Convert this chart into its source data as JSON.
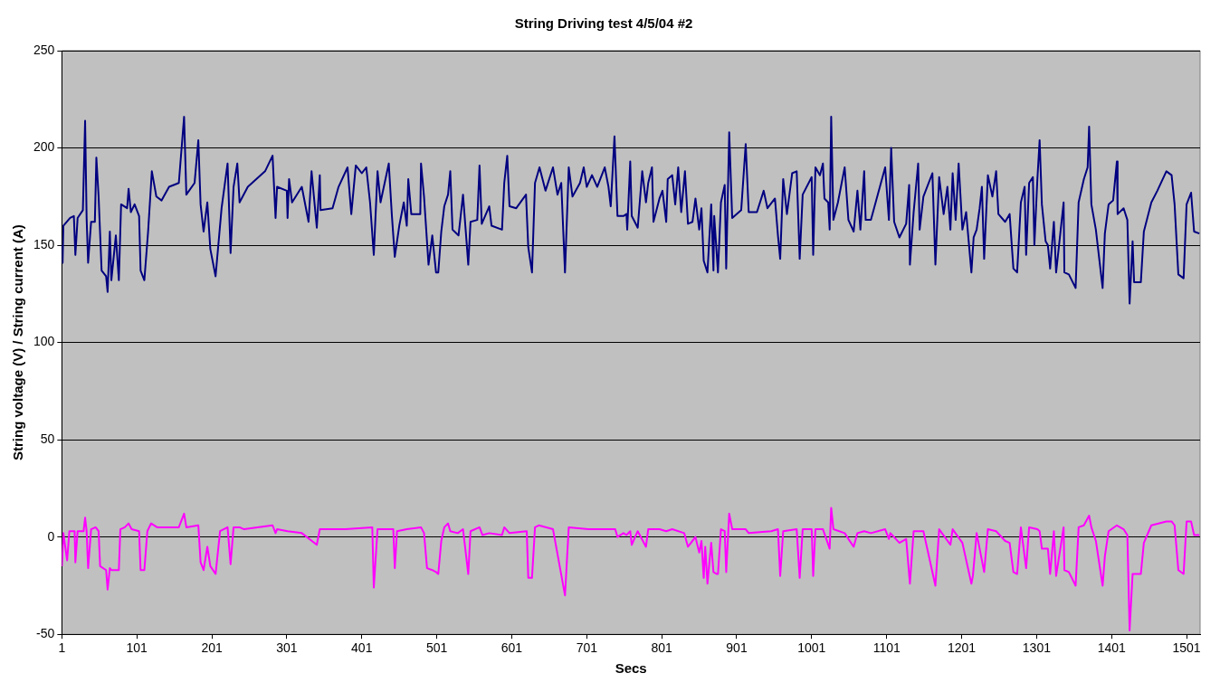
{
  "chart_data": {
    "type": "line",
    "title": "String Driving test 4/5/04 #2",
    "xlabel": "Secs",
    "ylabel": "String voltage (V) / String current (A)",
    "xlim": [
      1,
      1519
    ],
    "xticks": [
      1,
      101,
      201,
      301,
      401,
      501,
      601,
      701,
      801,
      901,
      1001,
      1101,
      1201,
      1301,
      1401,
      1501
    ],
    "ylim": [
      -50,
      250
    ],
    "yticks": [
      -50,
      0,
      50,
      100,
      150,
      200,
      250
    ],
    "grid": "y",
    "legend": false,
    "marker": "none",
    "line_style": "solid",
    "series": [
      {
        "color": "#000080",
        "x": [
          1,
          2,
          3,
          12,
          17,
          19,
          22,
          29,
          32,
          34,
          36,
          40,
          45,
          47,
          50,
          54,
          60,
          62,
          65,
          67,
          73,
          77,
          80,
          88,
          90,
          93,
          98,
          104,
          106,
          111,
          116,
          121,
          127,
          134,
          144,
          157,
          164,
          167,
          178,
          183,
          186,
          190,
          195,
          199,
          206,
          214,
          222,
          226,
          230,
          235,
          238,
          249,
          272,
          282,
          286,
          288,
          301,
          302,
          304,
          308,
          321,
          330,
          334,
          341,
          345,
          346,
          362,
          370,
          382,
          387,
          393,
          401,
          407,
          412,
          417,
          422,
          426,
          437,
          441,
          445,
          451,
          457,
          461,
          463,
          467,
          479,
          480,
          484,
          490,
          495,
          500,
          503,
          507,
          511,
          516,
          519,
          522,
          530,
          536,
          543,
          546,
          555,
          558,
          561,
          571,
          574,
          588,
          591,
          595,
          598,
          607,
          620,
          623,
          628,
          632,
          638,
          646,
          656,
          662,
          667,
          672,
          677,
          682,
          692,
          697,
          701,
          708,
          715,
          725,
          730,
          733,
          738,
          742,
          750,
          754,
          755,
          759,
          761,
          769,
          775,
          780,
          783,
          788,
          790,
          798,
          802,
          807,
          809,
          815,
          819,
          823,
          827,
          832,
          836,
          842,
          846,
          851,
          854,
          857,
          862,
          867,
          870,
          871,
          876,
          880,
          885,
          887,
          891,
          895,
          907,
          913,
          917,
          928,
          937,
          942,
          952,
          956,
          959,
          963,
          968,
          975,
          981,
          985,
          989,
          1001,
          1003,
          1006,
          1012,
          1016,
          1018,
          1023,
          1025,
          1027,
          1030,
          1036,
          1045,
          1050,
          1057,
          1062,
          1066,
          1071,
          1073,
          1080,
          1099,
          1104,
          1107,
          1111,
          1118,
          1127,
          1131,
          1132,
          1137,
          1143,
          1145,
          1150,
          1162,
          1166,
          1171,
          1177,
          1182,
          1186,
          1189,
          1193,
          1197,
          1202,
          1207,
          1214,
          1217,
          1221,
          1225,
          1228,
          1231,
          1236,
          1242,
          1247,
          1250,
          1259,
          1265,
          1270,
          1275,
          1280,
          1285,
          1287,
          1291,
          1296,
          1298,
          1302,
          1305,
          1308,
          1313,
          1316,
          1319,
          1324,
          1327,
          1337,
          1338,
          1344,
          1353,
          1357,
          1364,
          1369,
          1371,
          1374,
          1380,
          1389,
          1392,
          1397,
          1403,
          1408,
          1409,
          1417,
          1422,
          1425,
          1429,
          1431,
          1440,
          1444,
          1454,
          1462,
          1474,
          1481,
          1485,
          1490,
          1497,
          1501,
          1507,
          1511,
          1518
        ],
        "values": [
          150,
          141,
          160,
          164,
          165,
          145,
          164,
          168,
          214,
          164,
          141,
          162,
          162,
          195,
          175,
          137,
          134,
          126,
          157,
          132,
          155,
          132,
          171,
          169,
          179,
          167,
          171,
          165,
          137,
          132,
          157,
          188,
          175,
          173,
          180,
          182,
          216,
          176,
          182,
          204,
          171,
          157,
          172,
          148,
          134,
          169,
          192,
          146,
          180,
          192,
          172,
          180,
          188,
          196,
          164,
          180,
          178,
          164,
          184,
          172,
          180,
          162,
          188,
          159,
          186,
          168,
          169,
          180,
          190,
          166,
          191,
          187,
          190,
          172,
          145,
          188,
          172,
          192,
          166,
          144,
          160,
          172,
          160,
          184,
          166,
          166,
          192,
          175,
          140,
          155,
          136,
          136,
          157,
          170,
          176,
          188,
          158,
          155,
          176,
          140,
          162,
          163,
          191,
          161,
          170,
          160,
          158,
          182,
          196,
          170,
          169,
          176,
          149,
          136,
          182,
          190,
          178,
          190,
          176,
          182,
          136,
          190,
          175,
          182,
          190,
          180,
          186,
          180,
          190,
          180,
          170,
          206,
          165,
          165,
          166,
          158,
          193,
          165,
          159,
          188,
          172,
          182,
          190,
          162,
          174,
          178,
          162,
          184,
          186,
          171,
          190,
          167,
          188,
          161,
          162,
          174,
          158,
          169,
          142,
          136,
          171,
          137,
          165,
          136,
          172,
          181,
          138,
          208,
          164,
          168,
          202,
          167,
          167,
          178,
          169,
          174,
          155,
          143,
          184,
          166,
          187,
          188,
          143,
          176,
          185,
          145,
          190,
          186,
          192,
          174,
          172,
          158,
          216,
          163,
          172,
          190,
          163,
          157,
          178,
          158,
          188,
          163,
          163,
          190,
          163,
          200,
          162,
          154,
          161,
          181,
          140,
          167,
          192,
          158,
          175,
          187,
          140,
          185,
          166,
          180,
          158,
          187,
          163,
          192,
          158,
          167,
          136,
          154,
          158,
          169,
          180,
          143,
          186,
          175,
          188,
          166,
          162,
          166,
          138,
          136,
          172,
          180,
          145,
          182,
          185,
          150,
          184,
          204,
          171,
          152,
          150,
          138,
          162,
          136,
          172,
          136,
          135,
          128,
          172,
          184,
          190,
          211,
          171,
          158,
          128,
          156,
          171,
          173,
          193,
          166,
          169,
          163,
          120,
          152,
          131,
          131,
          157,
          172,
          178,
          188,
          186,
          171,
          135,
          133,
          171,
          177,
          157,
          156
        ]
      },
      {
        "color": "#ff00ff",
        "x": [
          1,
          3,
          8,
          11,
          18,
          19,
          22,
          30,
          32,
          34,
          36,
          40,
          46,
          50,
          52,
          60,
          62,
          65,
          67,
          73,
          77,
          79,
          85,
          90,
          94,
          104,
          106,
          111,
          115,
          120,
          128,
          140,
          157,
          164,
          167,
          183,
          186,
          190,
          195,
          199,
          206,
          212,
          222,
          226,
          230,
          238,
          244,
          282,
          286,
          288,
          302,
          321,
          341,
          345,
          379,
          415,
          417,
          422,
          443,
          445,
          448,
          461,
          480,
          484,
          488,
          495,
          500,
          503,
          507,
          511,
          516,
          519,
          529,
          536,
          543,
          546,
          558,
          562,
          571,
          588,
          591,
          598,
          621,
          623,
          628,
          632,
          637,
          656,
          672,
          677,
          703,
          739,
          742,
          750,
          754,
          759,
          761,
          769,
          780,
          783,
          798,
          807,
          815,
          831,
          836,
          846,
          851,
          854,
          857,
          859,
          862,
          867,
          870,
          874,
          876,
          880,
          885,
          887,
          891,
          895,
          913,
          917,
          947,
          956,
          959,
          963,
          981,
          985,
          989,
          1001,
          1003,
          1006,
          1016,
          1025,
          1027,
          1030,
          1045,
          1050,
          1057,
          1062,
          1071,
          1080,
          1099,
          1104,
          1106,
          1118,
          1127,
          1132,
          1137,
          1150,
          1166,
          1171,
          1186,
          1189,
          1202,
          1214,
          1216,
          1221,
          1231,
          1236,
          1247,
          1259,
          1265,
          1270,
          1275,
          1280,
          1287,
          1291,
          1302,
          1305,
          1308,
          1316,
          1319,
          1324,
          1327,
          1337,
          1338,
          1344,
          1353,
          1357,
          1364,
          1371,
          1374,
          1380,
          1389,
          1392,
          1397,
          1408,
          1417,
          1422,
          1425,
          1429,
          1440,
          1444,
          1454,
          1474,
          1481,
          1485,
          1490,
          1497,
          1501,
          1507,
          1511,
          1518
        ],
        "values": [
          -15,
          2,
          -12,
          3,
          3,
          -13,
          3,
          3,
          10,
          3,
          -16,
          4,
          5,
          3,
          -15,
          -17,
          -27,
          -16,
          -17,
          -17,
          -17,
          4,
          5,
          7,
          4,
          3,
          -17,
          -17,
          3,
          7,
          5,
          5,
          5,
          12,
          5,
          6,
          -13,
          -17,
          -5,
          -15,
          -19,
          3,
          5,
          -14,
          5,
          5,
          4,
          6,
          2,
          4,
          3,
          2,
          -4,
          4,
          4,
          5,
          -26,
          4,
          4,
          -16,
          3,
          4,
          5,
          2,
          -16,
          -17,
          -18,
          -19,
          -2,
          5,
          7,
          3,
          2,
          4,
          -19,
          3,
          5,
          1,
          2,
          1,
          5,
          2,
          3,
          -21,
          -21,
          5,
          6,
          4,
          -30,
          5,
          4,
          4,
          0,
          2,
          1,
          3,
          -4,
          3,
          -5,
          4,
          4,
          3,
          4,
          2,
          -5,
          0,
          -8,
          -2,
          -21,
          -5,
          -24,
          -3,
          -18,
          -19,
          -19,
          4,
          3,
          -18,
          12,
          4,
          4,
          2,
          3,
          4,
          -20,
          3,
          4,
          -21,
          4,
          4,
          -20,
          4,
          4,
          -6,
          15,
          4,
          2,
          -1,
          -5,
          2,
          3,
          2,
          4,
          -1,
          2,
          -3,
          -1,
          -24,
          3,
          3,
          -25,
          4,
          -4,
          4,
          -3,
          -24,
          -20,
          2,
          -18,
          4,
          3,
          -2,
          -3,
          -18,
          -19,
          5,
          -16,
          5,
          4,
          3,
          -6,
          -6,
          -19,
          3,
          -20,
          5,
          -17,
          -18,
          -25,
          5,
          6,
          11,
          5,
          -2,
          -25,
          -10,
          3,
          6,
          4,
          1,
          -48,
          -19,
          -19,
          -3,
          6,
          8,
          8,
          6,
          -17,
          -19,
          8,
          8,
          1,
          1
        ]
      }
    ]
  }
}
